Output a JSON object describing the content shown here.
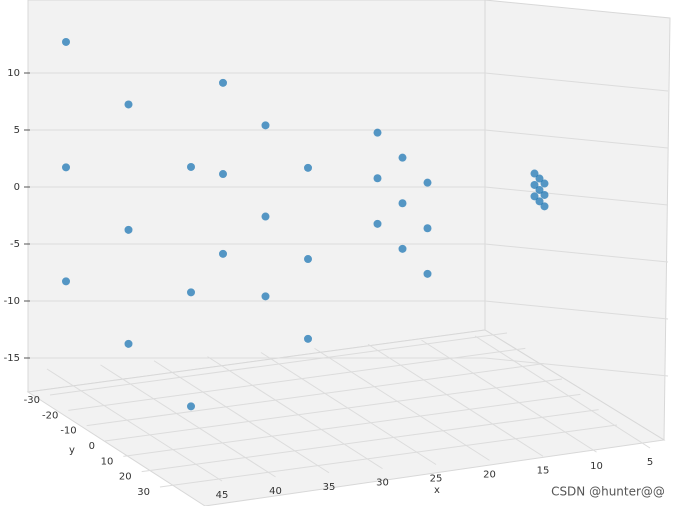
{
  "chart_data": {
    "type": "scatter3d",
    "x_label": "x",
    "y_label": "y",
    "x": [
      45,
      45,
      45,
      45,
      45,
      45,
      45,
      45,
      45,
      35,
      35,
      35,
      35,
      35,
      35,
      35,
      35,
      35,
      25,
      25,
      25,
      25,
      25,
      25,
      25,
      25,
      25,
      15,
      15,
      15,
      15,
      15,
      15,
      15,
      15,
      15
    ],
    "y": [
      -25,
      -25,
      -25,
      0,
      0,
      0,
      25,
      25,
      25,
      -17,
      -17,
      -17,
      0,
      0,
      0,
      17,
      17,
      17,
      -10,
      -10,
      -10,
      0,
      0,
      0,
      10,
      10,
      10,
      -2,
      -2,
      -2,
      0,
      0,
      0,
      2,
      2,
      2
    ],
    "z": [
      -10,
      0,
      11,
      -10,
      0,
      11,
      -10,
      0,
      11,
      -7,
      0,
      8,
      -7,
      0,
      8,
      -7,
      0,
      8,
      -4,
      0,
      4,
      -4,
      0,
      4,
      -4,
      0,
      4,
      -1,
      0,
      1,
      -1,
      0,
      1,
      -1,
      0,
      1
    ],
    "color": "#1f77b4",
    "xlim": [
      3,
      47
    ],
    "ylim": [
      -33,
      33
    ],
    "zlim": [
      -17,
      13
    ],
    "xticks": [
      45,
      40,
      35,
      30,
      25,
      20,
      15,
      10,
      5
    ],
    "yticks": [
      -30,
      -20,
      -10,
      0,
      10,
      20,
      30
    ],
    "zticks": [
      10,
      5,
      0,
      -5,
      -10,
      -15
    ],
    "grid": true,
    "watermark": "CSDN @hunter@@"
  }
}
